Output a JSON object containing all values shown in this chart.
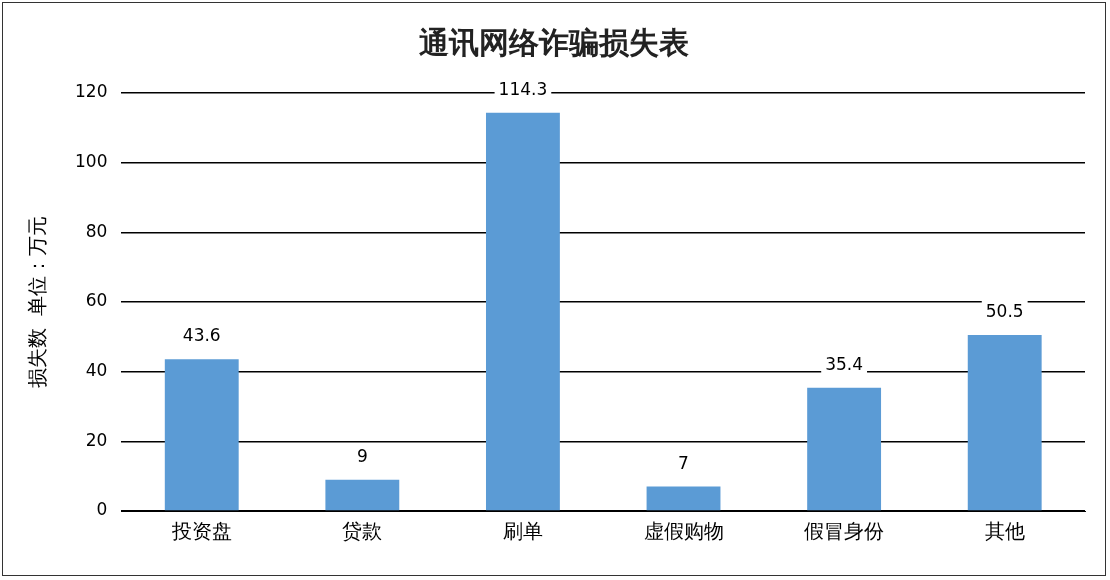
{
  "chart_data": {
    "type": "bar",
    "title": "通讯网络诈骗损失表",
    "ylabel": "损失数  单位：万元",
    "categories": [
      "投资盘",
      "贷款",
      "刷单",
      "虚假购物",
      "假冒身份",
      "其他"
    ],
    "values": [
      43.6,
      9,
      114.3,
      7,
      35.4,
      50.5
    ],
    "color": "#5b9bd5",
    "ylim": [
      0,
      120
    ],
    "yticks": [
      0,
      20,
      40,
      60,
      80,
      100,
      120
    ],
    "grid": "y",
    "data_labels": true,
    "legend": false
  }
}
